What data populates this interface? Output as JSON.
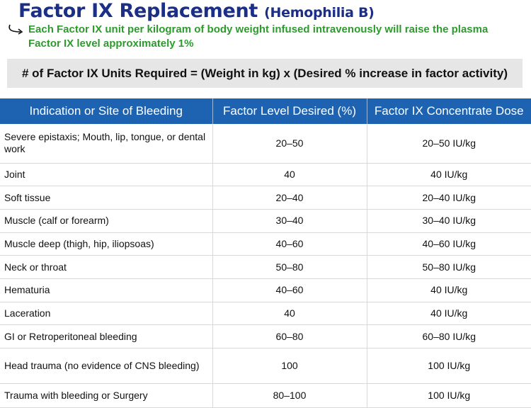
{
  "header": {
    "title": "Factor IX Replacement",
    "subtitle": "(Hemophilia B)",
    "note": "Each Factor IX unit per kilogram of body weight infused intravenously will raise the plasma Factor IX level approximately 1%",
    "formula": "# of Factor IX Units Required = (Weight in kg) x (Desired % increase in factor activity)"
  },
  "colors": {
    "title": "#1c2f86",
    "note": "#2c9b2c",
    "table_header": "#1e63b2",
    "formula_bg": "#e6e6e6"
  },
  "icons": {
    "note_arrow": "curved-arrow-icon"
  },
  "table": {
    "columns": [
      "Indication or Site of Bleeding",
      "Factor Level Desired (%)",
      "Factor IX Concentrate Dose"
    ],
    "rows": [
      [
        "Severe epistaxis; Mouth, lip, tongue, or dental work",
        "20–50",
        "20–50 IU/kg"
      ],
      [
        "Joint",
        "40",
        "40 IU/kg"
      ],
      [
        "Soft tissue",
        "20–40",
        "20–40 IU/kg"
      ],
      [
        "Muscle (calf or forearm)",
        "30–40",
        "30–40 IU/kg"
      ],
      [
        "Muscle deep (thigh, hip, iliopsoas)",
        "40–60",
        "40–60 IU/kg"
      ],
      [
        "Neck or throat",
        "50–80",
        "50–80 IU/kg"
      ],
      [
        "Hematuria",
        "40–60",
        "40 IU/kg"
      ],
      [
        "Laceration",
        "40",
        "40 IU/kg"
      ],
      [
        "GI or Retroperitoneal bleeding",
        "60–80",
        "60–80 IU/kg"
      ],
      [
        "Head trauma (no evidence of CNS bleeding)",
        "100",
        "100 IU/kg"
      ],
      [
        "Trauma with bleeding or Surgery",
        "80–100",
        "100 IU/kg"
      ]
    ]
  }
}
